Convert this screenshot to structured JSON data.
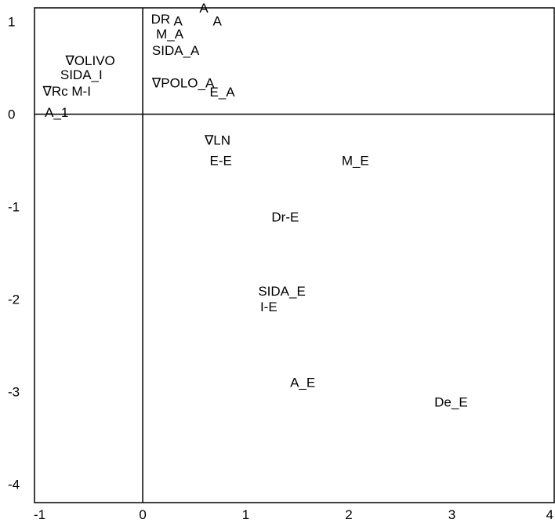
{
  "chart_data": {
    "type": "scatter",
    "title": "",
    "xlabel": "",
    "ylabel": "",
    "xlim": [
      -1.05,
      4.0
    ],
    "ylim": [
      -4.2,
      1.15
    ],
    "x_ticks": [
      {
        "value": -1,
        "label": "-1"
      },
      {
        "value": 0,
        "label": "0"
      },
      {
        "value": 1,
        "label": "1"
      },
      {
        "value": 2,
        "label": "2"
      },
      {
        "value": 3,
        "label": "3"
      },
      {
        "value": 4,
        "label": "4"
      }
    ],
    "y_ticks": [
      {
        "value": 1,
        "label": "1"
      },
      {
        "value": 0,
        "label": "0"
      },
      {
        "value": -1,
        "label": "-1"
      },
      {
        "value": -2,
        "label": "-2"
      },
      {
        "value": -3,
        "label": "-3"
      },
      {
        "value": -4,
        "label": "-4"
      }
    ],
    "reference_lines": {
      "x": 0,
      "y": 0
    },
    "grid": false,
    "points": [
      {
        "label": "DR",
        "x": 0.08,
        "y": 0.98
      },
      {
        "label": "A",
        "x": 0.3,
        "y": 0.96
      },
      {
        "label": "A",
        "x": 0.55,
        "y": 1.1
      },
      {
        "label": "A",
        "x": 0.68,
        "y": 0.96
      },
      {
        "label": "M_A",
        "x": 0.13,
        "y": 0.82
      },
      {
        "label": "SIDA_A",
        "x": 0.09,
        "y": 0.64
      },
      {
        "label": "∇OLIVO",
        "x": -0.75,
        "y": 0.53
      },
      {
        "label": "SIDA_I",
        "x": -0.8,
        "y": 0.38
      },
      {
        "label": "∇Rc M-I",
        "x": -0.97,
        "y": 0.2
      },
      {
        "label": "∇POLO_A",
        "x": 0.09,
        "y": 0.29
      },
      {
        "label": "E_A",
        "x": 0.65,
        "y": 0.19
      },
      {
        "label": "A_1",
        "x": -0.95,
        "y": -0.03
      },
      {
        "label": "∇LN",
        "x": 0.6,
        "y": -0.33
      },
      {
        "label": "E-E",
        "x": 0.65,
        "y": -0.55
      },
      {
        "label": "M_E",
        "x": 1.93,
        "y": -0.55
      },
      {
        "label": "Dr-E",
        "x": 1.25,
        "y": -1.16
      },
      {
        "label": "SIDA_E",
        "x": 1.12,
        "y": -1.96
      },
      {
        "label": "I-E",
        "x": 1.14,
        "y": -2.13
      },
      {
        "label": "A_E",
        "x": 1.43,
        "y": -2.95
      },
      {
        "label": "De_E",
        "x": 2.83,
        "y": -3.16
      }
    ]
  }
}
